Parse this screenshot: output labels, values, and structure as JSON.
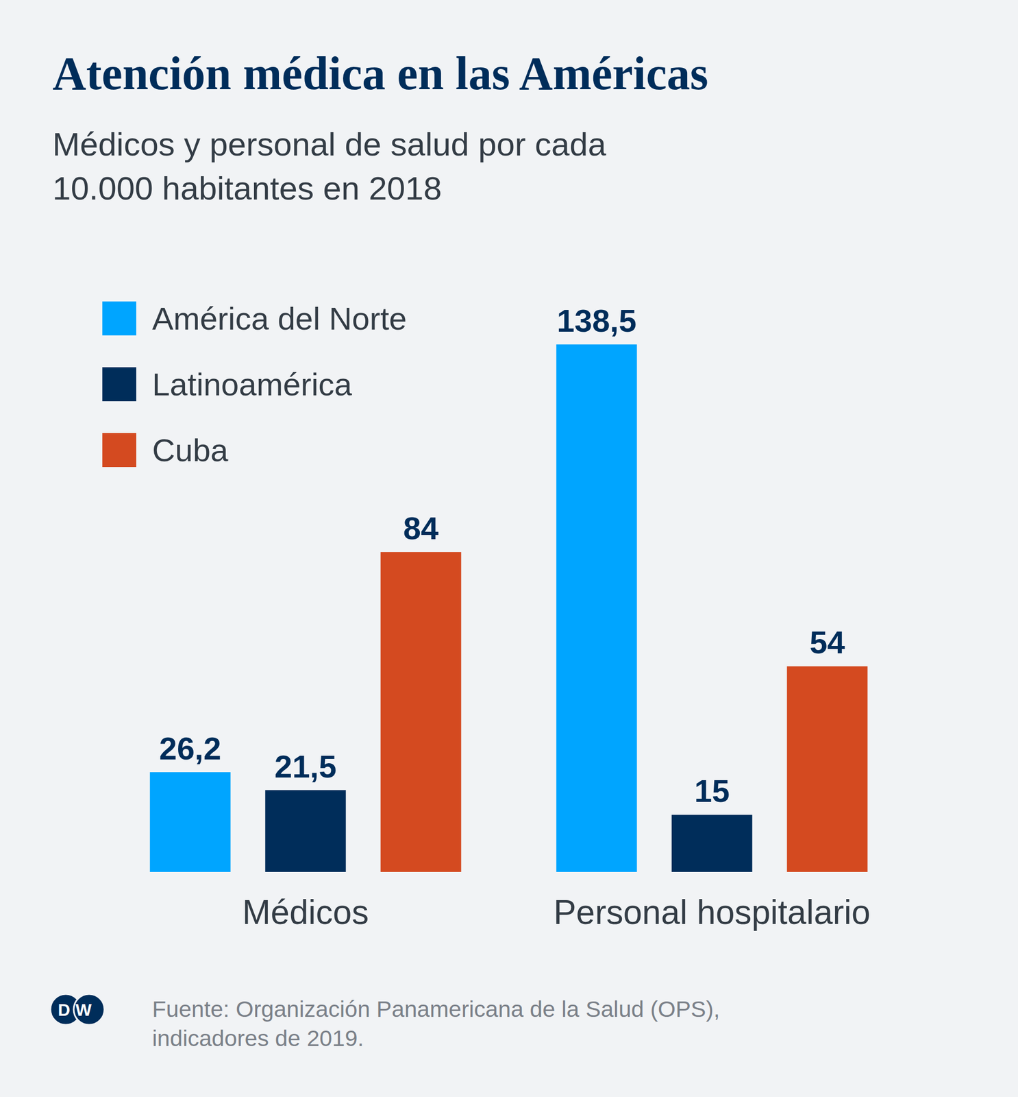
{
  "chart_data": {
    "type": "bar",
    "title": "Atención médica en las Américas",
    "subtitle": [
      "Médicos y personal de salud por cada",
      "10.000 habitantes en 2018"
    ],
    "categories": [
      "Médicos",
      "Personal hospitalario"
    ],
    "series": [
      {
        "name": "América del Norte",
        "color": "#00a5ff",
        "values": [
          26.2,
          138.5
        ],
        "value_labels": [
          "26,2",
          "138,5"
        ]
      },
      {
        "name": "Latinoamérica",
        "color": "#002d5a",
        "values": [
          21.5,
          15
        ],
        "value_labels": [
          "21,5",
          "15"
        ]
      },
      {
        "name": "Cuba",
        "color": "#d44a20",
        "values": [
          84,
          54
        ],
        "value_labels": [
          "84",
          "54"
        ]
      }
    ],
    "ylim": [
      0,
      138.5
    ],
    "data_labels": true,
    "tick_labels": "x",
    "grid": false,
    "legend": "top-left",
    "source": [
      "Fuente: Organización Panamericana de la Salud (OPS),",
      "indicadores de 2019."
    ],
    "logo": "DW"
  }
}
